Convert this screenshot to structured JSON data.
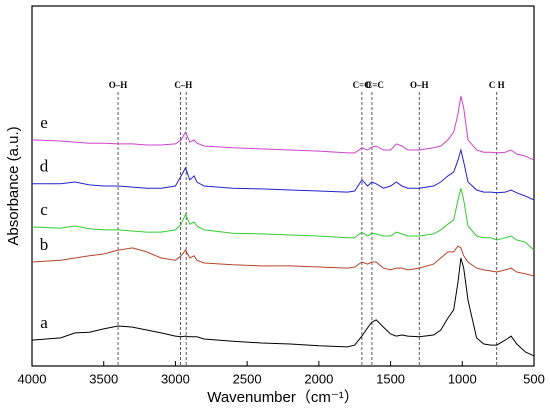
{
  "chart_data": {
    "type": "line",
    "xlabel": "Wavenumber（cm⁻¹）",
    "ylabel": "Absorbance (a.u.)",
    "xlim": [
      4000,
      500
    ],
    "xticks": [
      4000,
      3500,
      3000,
      2500,
      2000,
      1500,
      1000,
      500
    ],
    "ylim": [
      0,
      100
    ],
    "vlines": [
      3400,
      2965,
      2925,
      1700,
      1630,
      1300,
      760
    ],
    "annotations": [
      {
        "label": "O–H",
        "x": 3400
      },
      {
        "label": "C–H",
        "x": 2945
      },
      {
        "label": "C=O",
        "x": 1700
      },
      {
        "label": "C=C",
        "x": 1610
      },
      {
        "label": "O–H",
        "x": 1300
      },
      {
        "label": "C  H",
        "x": 760
      }
    ],
    "x": [
      4000,
      3800,
      3700,
      3600,
      3500,
      3400,
      3300,
      3200,
      3100,
      3000,
      2960,
      2930,
      2900,
      2870,
      2850,
      2800,
      2600,
      2400,
      2200,
      2000,
      1800,
      1750,
      1700,
      1660,
      1630,
      1600,
      1550,
      1500,
      1460,
      1420,
      1380,
      1300,
      1200,
      1150,
      1100,
      1060,
      1030,
      1010,
      990,
      960,
      900,
      850,
      800,
      760,
      700,
      660,
      620,
      560,
      500
    ],
    "series": [
      {
        "name": "a",
        "color": "#000000",
        "values": [
          7.2,
          7.8,
          9.2,
          9.4,
          10.3,
          11.1,
          10.8,
          10,
          9.2,
          8.3,
          8.1,
          8.3,
          8.1,
          8.1,
          8.1,
          7.5,
          6.9,
          6.4,
          6.1,
          5.6,
          5.3,
          5.8,
          8.3,
          10.6,
          12.2,
          12.8,
          10.8,
          8.9,
          8.3,
          8.6,
          8.3,
          8.1,
          8.6,
          10,
          13.3,
          15.6,
          23.3,
          30,
          27.2,
          18.3,
          7.8,
          6.1,
          5.8,
          5.8,
          7.2,
          8.3,
          6.1,
          3.9,
          2.8
        ]
      },
      {
        "name": "b",
        "color": "#b5442a",
        "values": [
          28.9,
          29.4,
          30,
          30.6,
          31.1,
          32.2,
          32.8,
          31.7,
          30,
          29.4,
          30.6,
          32.2,
          30,
          30.6,
          29.4,
          28.6,
          28.1,
          27.8,
          27.8,
          27.5,
          27.2,
          27.5,
          28.9,
          28.3,
          28.9,
          28.9,
          27.2,
          26.7,
          27.2,
          27.2,
          26.7,
          27.2,
          28.3,
          30,
          31.7,
          31.7,
          33.3,
          32.8,
          30.6,
          28.9,
          27.2,
          26.7,
          26.4,
          26.1,
          26.7,
          27.2,
          26.1,
          25.6,
          25
        ]
      },
      {
        "name": "c",
        "color": "#33cc33",
        "values": [
          38.6,
          38.3,
          38.9,
          38.1,
          37.8,
          37.8,
          37.5,
          37.2,
          37.2,
          37.8,
          39.4,
          42.2,
          39.4,
          40,
          38.9,
          37.8,
          36.9,
          36.7,
          36.4,
          36.1,
          35.6,
          35.6,
          37.2,
          36.1,
          36.9,
          36.7,
          36.1,
          36.1,
          37.2,
          36.7,
          36.1,
          36.1,
          36.7,
          37.8,
          39.4,
          40.6,
          46.1,
          49.4,
          46.1,
          38.9,
          36.1,
          35.6,
          35.6,
          35,
          35.6,
          36.1,
          35,
          34.4,
          32.2
        ]
      },
      {
        "name": "d",
        "color": "#2222cc",
        "values": [
          50.6,
          50.6,
          51.1,
          50.3,
          50,
          50,
          49.7,
          49.4,
          49.4,
          50,
          52.8,
          55,
          51.7,
          52.8,
          51.1,
          50,
          49.4,
          49.2,
          48.9,
          48.6,
          48.3,
          48.6,
          51.7,
          50,
          51.1,
          50.6,
          49.4,
          50,
          51.1,
          50,
          49.4,
          49.4,
          50,
          51.1,
          52.8,
          53.9,
          57.2,
          60,
          56.7,
          51.1,
          48.9,
          48.3,
          48.3,
          48.1,
          48.3,
          48.9,
          48.1,
          47.2,
          46.1
        ]
      },
      {
        "name": "e",
        "color": "#cc44cc",
        "values": [
          62.8,
          62.5,
          62.2,
          61.9,
          61.9,
          61.7,
          61.7,
          61.4,
          61.4,
          61.7,
          62.8,
          65,
          62.2,
          62.8,
          61.9,
          61.1,
          60.6,
          60.3,
          60,
          59.7,
          59.2,
          59.2,
          60.6,
          60,
          60.8,
          61.1,
          60,
          60,
          61.7,
          61.1,
          60,
          60,
          60.6,
          61.1,
          62.8,
          65,
          70,
          75,
          71.7,
          62.8,
          60,
          59.4,
          59.4,
          59.2,
          59.4,
          60,
          58.9,
          58.3,
          57.2
        ]
      }
    ]
  }
}
